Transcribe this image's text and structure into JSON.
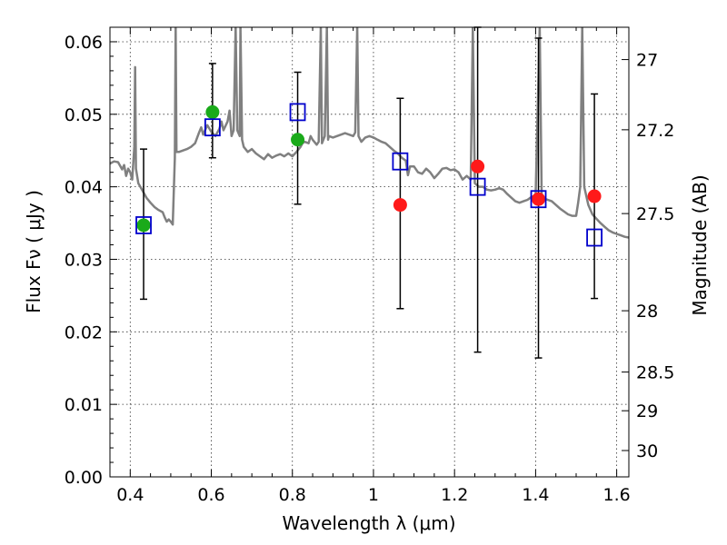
{
  "chart_data": {
    "type": "scatter",
    "title": "",
    "xlabel": "Wavelength  λ (μm)",
    "ylabel": "Flux  Fν  ( μJy )",
    "ylabel_right": "Magnitude (AB)",
    "xlim": [
      0.35,
      1.63
    ],
    "ylim": [
      0.0,
      0.062
    ],
    "grid": true,
    "x_ticks": [
      0.4,
      0.6,
      0.8,
      1.0,
      1.2,
      1.4,
      1.6
    ],
    "x_tick_labels": [
      "0.4",
      "0.6",
      "0.8",
      "1",
      "1.2",
      "1.4",
      "1.6"
    ],
    "y_ticks": [
      0.0,
      0.01,
      0.02,
      0.03,
      0.04,
      0.05,
      0.06
    ],
    "y_tick_labels": [
      "0.00",
      "0.01",
      "0.02",
      "0.03",
      "0.04",
      "0.05",
      "0.06"
    ],
    "right_ticks": [
      {
        "mag": 27,
        "label": "27"
      },
      {
        "mag": 27.2,
        "label": "27.2"
      },
      {
        "mag": 27.5,
        "label": "27.5"
      },
      {
        "mag": 28,
        "label": "28"
      },
      {
        "mag": 28.5,
        "label": "28.5"
      },
      {
        "mag": 29,
        "label": "29"
      },
      {
        "mag": 30,
        "label": "30"
      }
    ],
    "series": [
      {
        "kind": "line",
        "color": "#808080",
        "points": [
          [
            0.35,
            0.0432
          ],
          [
            0.36,
            0.0435
          ],
          [
            0.37,
            0.0434
          ],
          [
            0.38,
            0.0424
          ],
          [
            0.385,
            0.043
          ],
          [
            0.39,
            0.0415
          ],
          [
            0.395,
            0.0425
          ],
          [
            0.4,
            0.042
          ],
          [
            0.405,
            0.041
          ],
          [
            0.41,
            0.0455
          ],
          [
            0.412,
            0.0565
          ],
          [
            0.414,
            0.0425
          ],
          [
            0.42,
            0.0405
          ],
          [
            0.43,
            0.0395
          ],
          [
            0.44,
            0.0385
          ],
          [
            0.45,
            0.0378
          ],
          [
            0.46,
            0.0372
          ],
          [
            0.47,
            0.0368
          ],
          [
            0.48,
            0.0365
          ],
          [
            0.485,
            0.0358
          ],
          [
            0.49,
            0.0352
          ],
          [
            0.495,
            0.0355
          ],
          [
            0.5,
            0.0352
          ],
          [
            0.505,
            0.0348
          ],
          [
            0.51,
            0.044
          ],
          [
            0.512,
            0.062
          ],
          [
            0.514,
            0.0448
          ],
          [
            0.52,
            0.0448
          ],
          [
            0.53,
            0.045
          ],
          [
            0.54,
            0.0452
          ],
          [
            0.55,
            0.0455
          ],
          [
            0.56,
            0.046
          ],
          [
            0.57,
            0.0475
          ],
          [
            0.575,
            0.0482
          ],
          [
            0.58,
            0.0472
          ],
          [
            0.59,
            0.0485
          ],
          [
            0.6,
            0.0476
          ],
          [
            0.61,
            0.047
          ],
          [
            0.62,
            0.048
          ],
          [
            0.625,
            0.049
          ],
          [
            0.63,
            0.0478
          ],
          [
            0.64,
            0.049
          ],
          [
            0.645,
            0.0505
          ],
          [
            0.65,
            0.047
          ],
          [
            0.655,
            0.0478
          ],
          [
            0.66,
            0.062
          ],
          [
            0.664,
            0.0478
          ],
          [
            0.67,
            0.047
          ],
          [
            0.672,
            0.062
          ],
          [
            0.676,
            0.0465
          ],
          [
            0.68,
            0.0455
          ],
          [
            0.69,
            0.0448
          ],
          [
            0.7,
            0.0452
          ],
          [
            0.71,
            0.0446
          ],
          [
            0.72,
            0.0442
          ],
          [
            0.73,
            0.0438
          ],
          [
            0.74,
            0.0445
          ],
          [
            0.75,
            0.044
          ],
          [
            0.76,
            0.0443
          ],
          [
            0.77,
            0.0445
          ],
          [
            0.78,
            0.0442
          ],
          [
            0.79,
            0.0446
          ],
          [
            0.8,
            0.0442
          ],
          [
            0.81,
            0.0448
          ],
          [
            0.82,
            0.0455
          ],
          [
            0.825,
            0.046
          ],
          [
            0.83,
            0.0462
          ],
          [
            0.84,
            0.046
          ],
          [
            0.845,
            0.047
          ],
          [
            0.85,
            0.0465
          ],
          [
            0.86,
            0.0458
          ],
          [
            0.865,
            0.0462
          ],
          [
            0.87,
            0.062
          ],
          [
            0.873,
            0.046
          ],
          [
            0.88,
            0.047
          ],
          [
            0.885,
            0.062
          ],
          [
            0.888,
            0.0465
          ],
          [
            0.89,
            0.047
          ],
          [
            0.9,
            0.0468
          ],
          [
            0.91,
            0.047
          ],
          [
            0.92,
            0.0472
          ],
          [
            0.93,
            0.0474
          ],
          [
            0.94,
            0.0472
          ],
          [
            0.95,
            0.047
          ],
          [
            0.955,
            0.0475
          ],
          [
            0.96,
            0.062
          ],
          [
            0.963,
            0.047
          ],
          [
            0.97,
            0.0462
          ],
          [
            0.98,
            0.0468
          ],
          [
            0.99,
            0.047
          ],
          [
            1.0,
            0.0468
          ],
          [
            1.01,
            0.0465
          ],
          [
            1.02,
            0.0462
          ],
          [
            1.03,
            0.046
          ],
          [
            1.04,
            0.0455
          ],
          [
            1.05,
            0.045
          ],
          [
            1.06,
            0.0446
          ],
          [
            1.07,
            0.044
          ],
          [
            1.08,
            0.0436
          ],
          [
            1.085,
            0.0416
          ],
          [
            1.09,
            0.0428
          ],
          [
            1.1,
            0.0428
          ],
          [
            1.11,
            0.042
          ],
          [
            1.12,
            0.0418
          ],
          [
            1.13,
            0.0425
          ],
          [
            1.14,
            0.042
          ],
          [
            1.15,
            0.0412
          ],
          [
            1.16,
            0.0418
          ],
          [
            1.17,
            0.0425
          ],
          [
            1.18,
            0.0426
          ],
          [
            1.19,
            0.0423
          ],
          [
            1.2,
            0.0424
          ],
          [
            1.21,
            0.042
          ],
          [
            1.22,
            0.041
          ],
          [
            1.23,
            0.0415
          ],
          [
            1.24,
            0.041
          ],
          [
            1.245,
            0.062
          ],
          [
            1.25,
            0.0405
          ],
          [
            1.26,
            0.04
          ],
          [
            1.27,
            0.04
          ],
          [
            1.28,
            0.0396
          ],
          [
            1.29,
            0.0395
          ],
          [
            1.3,
            0.0396
          ],
          [
            1.31,
            0.0398
          ],
          [
            1.32,
            0.0396
          ],
          [
            1.33,
            0.039
          ],
          [
            1.34,
            0.0385
          ],
          [
            1.35,
            0.038
          ],
          [
            1.36,
            0.0378
          ],
          [
            1.37,
            0.038
          ],
          [
            1.38,
            0.0382
          ],
          [
            1.39,
            0.0386
          ],
          [
            1.4,
            0.0388
          ],
          [
            1.41,
            0.062
          ],
          [
            1.415,
            0.0384
          ],
          [
            1.42,
            0.0384
          ],
          [
            1.43,
            0.0382
          ],
          [
            1.44,
            0.038
          ],
          [
            1.45,
            0.0375
          ],
          [
            1.46,
            0.037
          ],
          [
            1.47,
            0.0366
          ],
          [
            1.48,
            0.0362
          ],
          [
            1.49,
            0.036
          ],
          [
            1.5,
            0.036
          ],
          [
            1.505,
            0.0378
          ],
          [
            1.51,
            0.04
          ],
          [
            1.515,
            0.062
          ],
          [
            1.52,
            0.04
          ],
          [
            1.53,
            0.0375
          ],
          [
            1.54,
            0.0362
          ],
          [
            1.55,
            0.0356
          ],
          [
            1.56,
            0.035
          ],
          [
            1.57,
            0.0345
          ],
          [
            1.58,
            0.034
          ],
          [
            1.59,
            0.0337
          ],
          [
            1.6,
            0.0335
          ],
          [
            1.61,
            0.0333
          ],
          [
            1.62,
            0.0331
          ],
          [
            1.63,
            0.033
          ]
        ]
      }
    ],
    "errorbars": [
      {
        "x": 0.433,
        "y_low": 0.0245,
        "y_high": 0.0452
      },
      {
        "x": 0.603,
        "y_low": 0.044,
        "y_high": 0.057
      },
      {
        "x": 0.813,
        "y_low": 0.0376,
        "y_high": 0.0558
      },
      {
        "x": 1.066,
        "y_low": 0.0232,
        "y_high": 0.0522
      },
      {
        "x": 1.257,
        "y_low": 0.0172,
        "y_high": 0.062
      },
      {
        "x": 1.407,
        "y_low": 0.0164,
        "y_high": 0.0605
      },
      {
        "x": 1.545,
        "y_low": 0.0246,
        "y_high": 0.0528
      }
    ],
    "green_points": [
      {
        "x": 0.433,
        "y": 0.0347,
        "color": "#1aaa1a"
      },
      {
        "x": 0.603,
        "y": 0.0503,
        "color": "#1aaa1a"
      },
      {
        "x": 0.813,
        "y": 0.0465,
        "color": "#1aaa1a"
      }
    ],
    "red_points": [
      {
        "x": 1.066,
        "y": 0.0375,
        "color": "#ff1a1a"
      },
      {
        "x": 1.257,
        "y": 0.0428,
        "color": "#ff1a1a"
      },
      {
        "x": 1.407,
        "y": 0.0383,
        "color": "#ff1a1a"
      },
      {
        "x": 1.545,
        "y": 0.0387,
        "color": "#ff1a1a"
      }
    ],
    "model_squares": [
      {
        "x": 0.433,
        "y": 0.0347,
        "color": "#0000cc"
      },
      {
        "x": 0.603,
        "y": 0.0482,
        "color": "#0000cc"
      },
      {
        "x": 0.813,
        "y": 0.0503,
        "color": "#0000cc"
      },
      {
        "x": 1.066,
        "y": 0.0435,
        "color": "#0000cc"
      },
      {
        "x": 1.257,
        "y": 0.04,
        "color": "#0000cc"
      },
      {
        "x": 1.407,
        "y": 0.0383,
        "color": "#0000cc"
      },
      {
        "x": 1.545,
        "y": 0.033,
        "color": "#0000cc"
      }
    ]
  }
}
